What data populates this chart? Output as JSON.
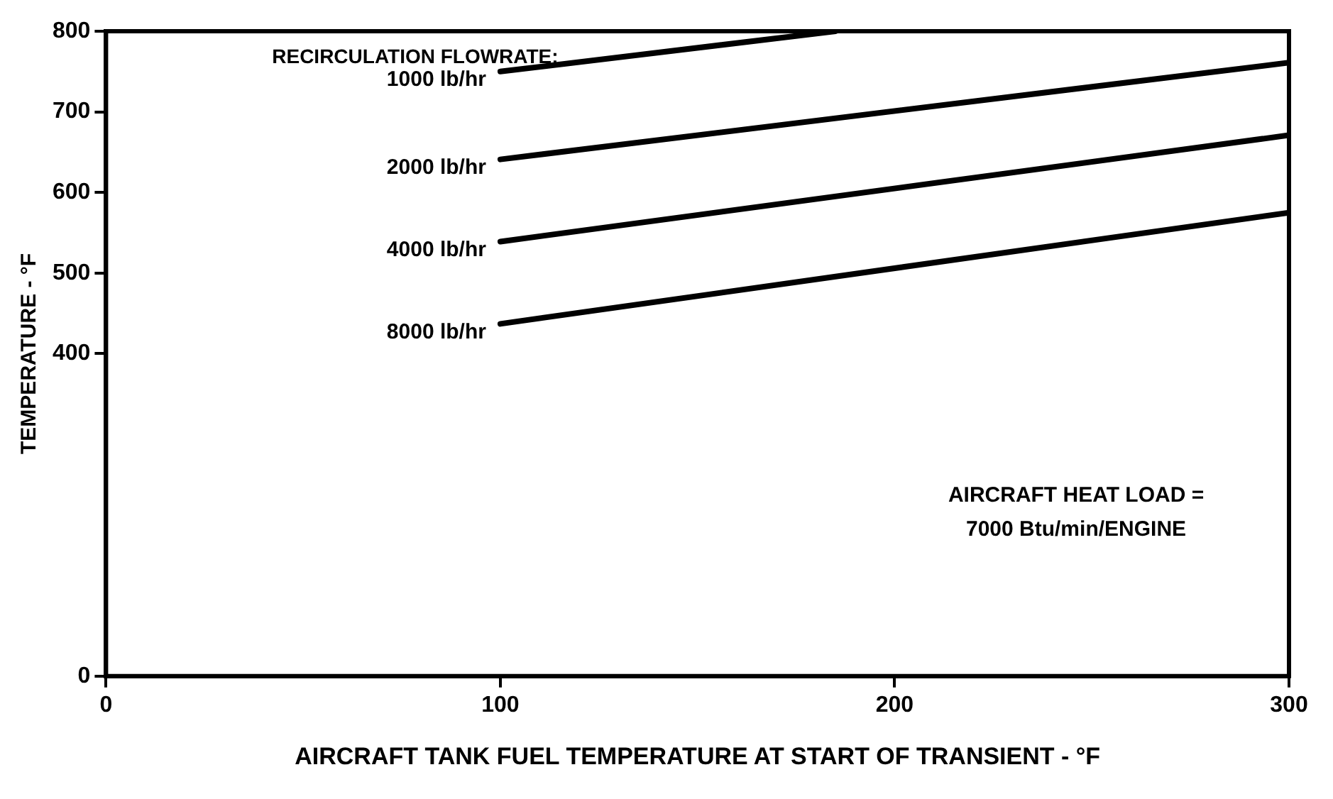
{
  "chart_data": {
    "type": "line",
    "xlabel": "AIRCRAFT TANK FUEL TEMPERATURE AT START OF TRANSIENT - °F",
    "ylabel": "TEMPERATURE - °F",
    "series": [
      {
        "name": "1000 lb/hr",
        "color": "#000000",
        "x": [
          100,
          185
        ],
        "values": [
          750,
          800
        ]
      },
      {
        "name": "2000 lb/hr",
        "color": "#000000",
        "x": [
          100,
          300
        ],
        "values": [
          641,
          761
        ]
      },
      {
        "name": "4000 lb/hr",
        "color": "#000000",
        "x": [
          100,
          300
        ],
        "values": [
          539,
          671
        ]
      },
      {
        "name": "8000 lb/hr",
        "color": "#000000",
        "x": [
          100,
          300
        ],
        "values": [
          437,
          575
        ]
      }
    ],
    "xlim": [
      0,
      300
    ],
    "xticks": [
      0,
      100,
      200,
      300
    ],
    "ylim": [
      0,
      800
    ],
    "yticks": [
      0,
      400,
      500,
      600,
      700,
      800
    ],
    "grid": false,
    "legend": false,
    "marker": "none",
    "line_style": "solid",
    "annotations": [
      {
        "text": "RECIRCULATION FLOWRATE:",
        "x": 100,
        "y": 750
      },
      "AIRCRAFT HEAT LOAD = 7000 Btu/min/ENGINE"
    ]
  }
}
